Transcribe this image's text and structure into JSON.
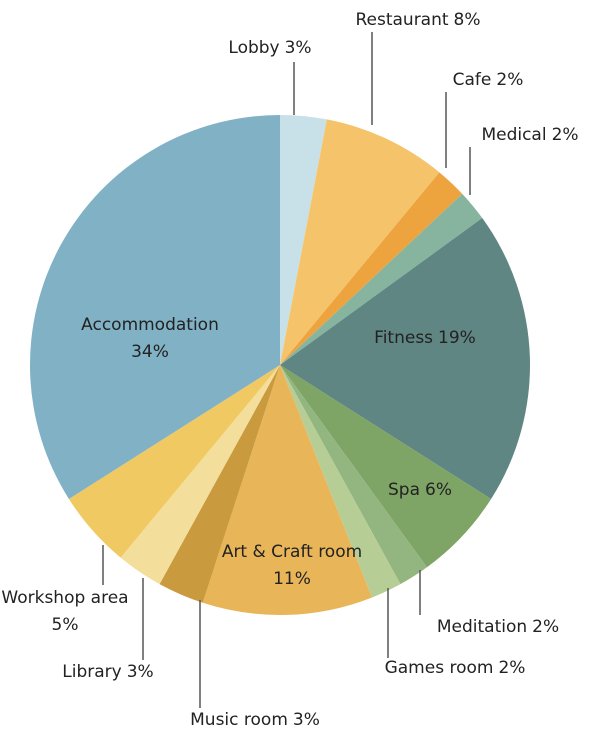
{
  "chart_data": {
    "type": "pie",
    "categories": [
      "Lobby",
      "Restaurant",
      "Cafe",
      "Medical",
      "Fitness",
      "Spa",
      "Meditation",
      "Games room",
      "Art & Craft room",
      "Music room",
      "Library",
      "Workshop area",
      "Accommodation"
    ],
    "values": [
      3,
      8,
      2,
      2,
      19,
      6,
      2,
      2,
      11,
      3,
      3,
      5,
      34
    ],
    "value_labels": [
      "3%",
      "8%",
      "2%",
      "2%",
      "19%",
      "6%",
      "2%",
      "2%",
      "11%",
      "3%",
      "3%",
      "5%",
      "34%"
    ],
    "colors": [
      "#c8e0e8",
      "#f5c46a",
      "#eea43e",
      "#86b49f",
      "#5f8682",
      "#7ea466",
      "#93b57f",
      "#b7cd96",
      "#e8b658",
      "#c99b3e",
      "#f4de9c",
      "#f0c962",
      "#80b1c5"
    ]
  }
}
